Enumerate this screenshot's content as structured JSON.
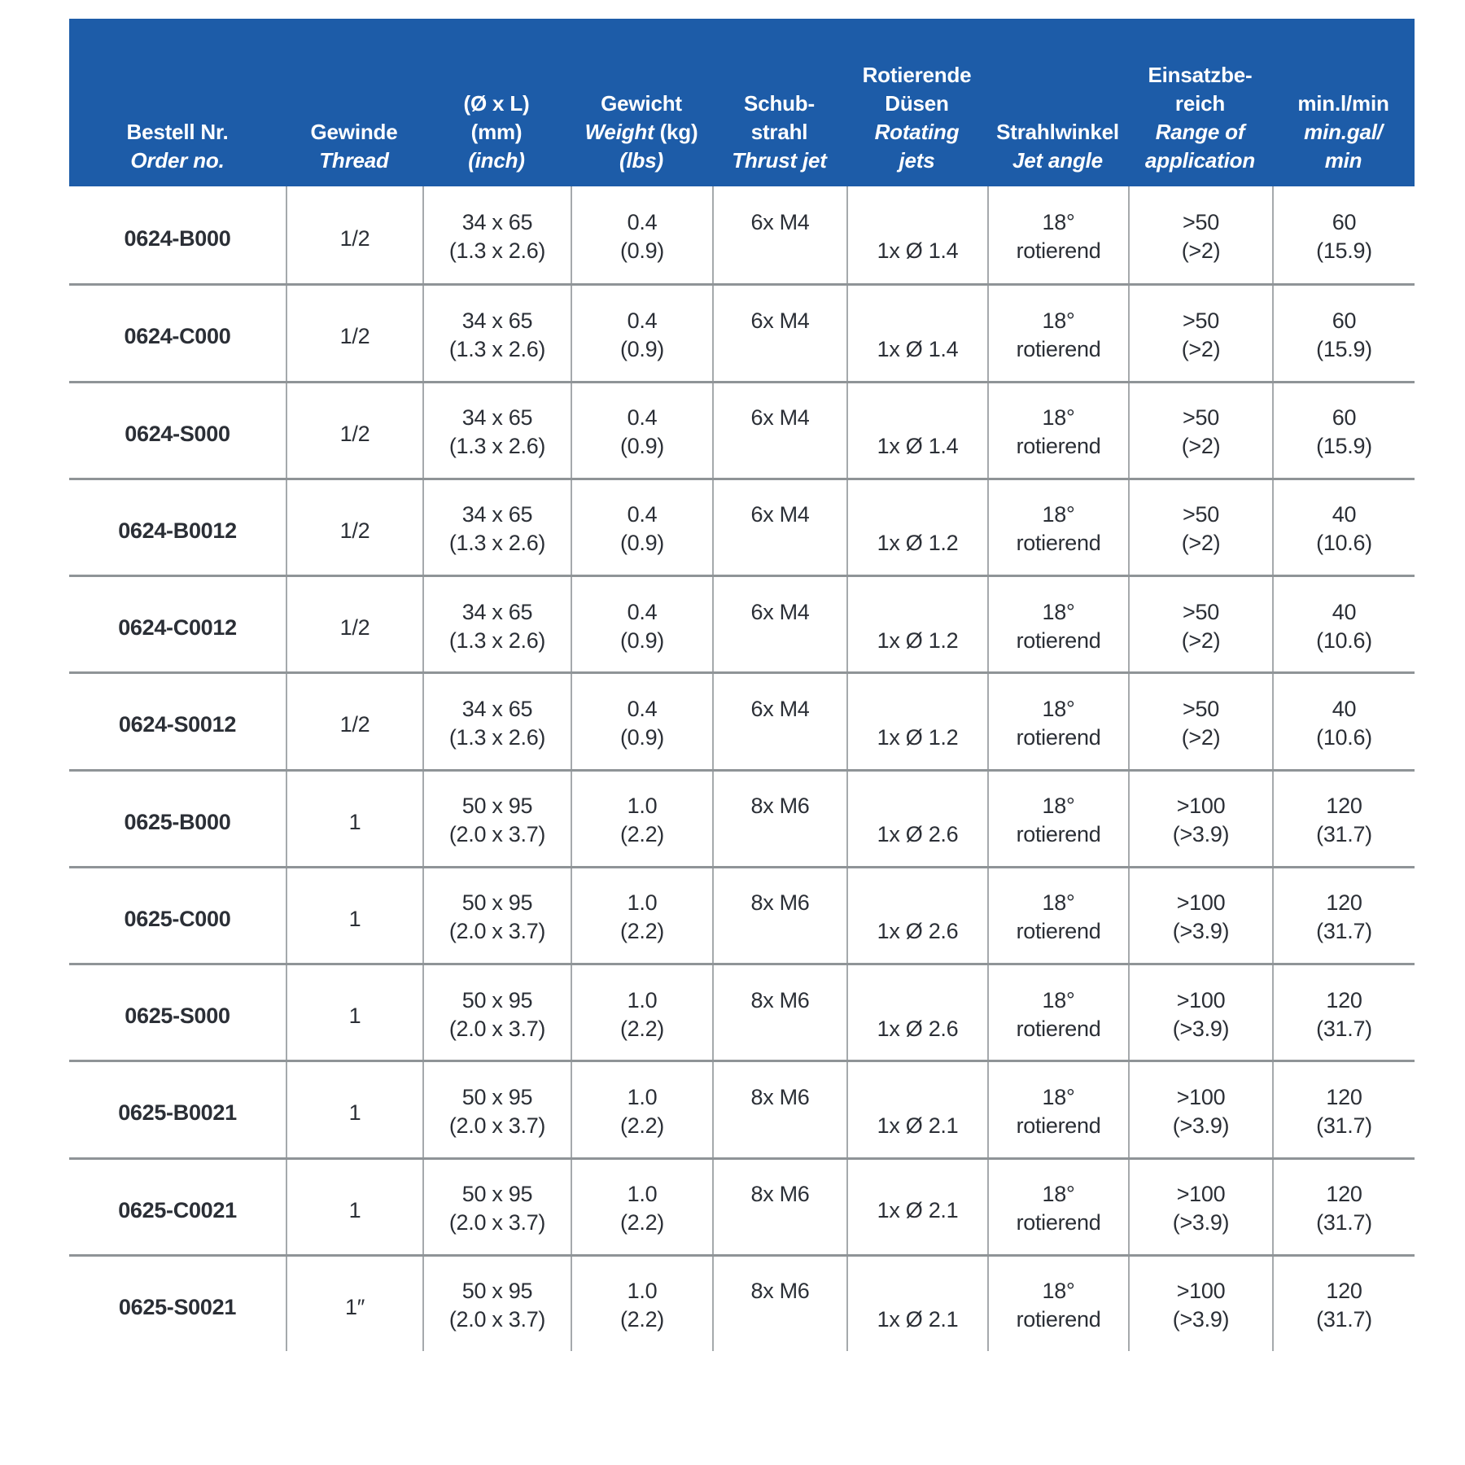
{
  "page": {
    "background": "#ffffff"
  },
  "table": {
    "colors": {
      "header_bg": "#1d5ca8",
      "header_text": "#ffffff",
      "body_text": "#2b2f36",
      "row_separator": "#8f9497",
      "column_separator": "#a5a9ac"
    },
    "header": {
      "columns": [
        {
          "id": "order-no",
          "lines": [
            [
              {
                "t": "Bestell Nr.",
                "i": false
              }
            ],
            [
              {
                "t": "Order no.",
                "i": true
              }
            ]
          ]
        },
        {
          "id": "thread",
          "lines": [
            [
              {
                "t": "Gewinde",
                "i": false
              }
            ],
            [
              {
                "t": "Thread",
                "i": true
              }
            ]
          ]
        },
        {
          "id": "dimensions",
          "lines": [
            [
              {
                "t": "(Ø x L)",
                "i": false
              }
            ],
            [
              {
                "t": "(mm)",
                "i": false
              }
            ],
            [
              {
                "t": "(inch)",
                "i": true
              }
            ]
          ]
        },
        {
          "id": "weight",
          "lines": [
            [
              {
                "t": "Gewicht",
                "i": false
              }
            ],
            [
              {
                "t": "Weight ",
                "i": true
              },
              {
                "t": "(kg)",
                "i": false
              }
            ],
            [
              {
                "t": "(lbs)",
                "i": true
              }
            ]
          ]
        },
        {
          "id": "thrust-jet",
          "lines": [
            [
              {
                "t": "Schub-",
                "i": false
              }
            ],
            [
              {
                "t": "strahl",
                "i": false
              }
            ],
            [
              {
                "t": "Thrust jet",
                "i": true
              }
            ]
          ]
        },
        {
          "id": "rotating-jets",
          "lines": [
            [
              {
                "t": "Rotierende",
                "i": false
              }
            ],
            [
              {
                "t": "Düsen",
                "i": false
              }
            ],
            [
              {
                "t": "Rotating",
                "i": true
              }
            ],
            [
              {
                "t": "jets",
                "i": true
              }
            ]
          ]
        },
        {
          "id": "jet-angle",
          "lines": [
            [
              {
                "t": "Strahlwinkel",
                "i": false
              }
            ],
            [
              {
                "t": "Jet angle",
                "i": true
              }
            ]
          ]
        },
        {
          "id": "range-of-application",
          "lines": [
            [
              {
                "t": "Einsatzbe-",
                "i": false
              }
            ],
            [
              {
                "t": "reich",
                "i": false
              }
            ],
            [
              {
                "t": "Range of",
                "i": true
              }
            ],
            [
              {
                "t": "application",
                "i": true
              }
            ]
          ]
        },
        {
          "id": "flow-rate",
          "lines": [
            [
              {
                "t": "min.l/min",
                "i": false
              }
            ],
            [
              {
                "t": "min.gal/",
                "i": true
              }
            ],
            [
              {
                "t": "min",
                "i": true
              }
            ]
          ]
        }
      ]
    },
    "rows": [
      {
        "order_no": "0624-B000",
        "thread": "1/2",
        "dim_mm": "34 x 65",
        "dim_inch": "(1.3 x 2.6)",
        "weight_kg": "0.4",
        "weight_lbs": "(0.9)",
        "thrust_jet": "6x M4",
        "rotating_jets": "1x Ø 1.4",
        "jets_align": "line2",
        "jet_angle_deg": "18°",
        "jet_angle_mode": "rotierend",
        "range_metric": ">50",
        "range_imperial": "(>2)",
        "flow_l": "60",
        "flow_gal": "(15.9)"
      },
      {
        "order_no": "0624-C000",
        "thread": "1/2",
        "dim_mm": "34 x 65",
        "dim_inch": "(1.3 x 2.6)",
        "weight_kg": "0.4",
        "weight_lbs": "(0.9)",
        "thrust_jet": "6x M4",
        "rotating_jets": "1x Ø 1.4",
        "jets_align": "line2",
        "jet_angle_deg": "18°",
        "jet_angle_mode": "rotierend",
        "range_metric": ">50",
        "range_imperial": "(>2)",
        "flow_l": "60",
        "flow_gal": "(15.9)"
      },
      {
        "order_no": "0624-S000",
        "thread": "1/2",
        "dim_mm": "34 x 65",
        "dim_inch": "(1.3 x 2.6)",
        "weight_kg": "0.4",
        "weight_lbs": "(0.9)",
        "thrust_jet": "6x M4",
        "rotating_jets": "1x Ø 1.4",
        "jets_align": "line2",
        "jet_angle_deg": "18°",
        "jet_angle_mode": "rotierend",
        "range_metric": ">50",
        "range_imperial": "(>2)",
        "flow_l": "60",
        "flow_gal": "(15.9)"
      },
      {
        "order_no": "0624-B0012",
        "thread": "1/2",
        "dim_mm": "34 x 65",
        "dim_inch": "(1.3 x 2.6)",
        "weight_kg": "0.4",
        "weight_lbs": "(0.9)",
        "thrust_jet": "6x M4",
        "rotating_jets": "1x Ø 1.2",
        "jets_align": "line2",
        "jet_angle_deg": "18°",
        "jet_angle_mode": "rotierend",
        "range_metric": ">50",
        "range_imperial": "(>2)",
        "flow_l": "40",
        "flow_gal": "(10.6)"
      },
      {
        "order_no": "0624-C0012",
        "thread": "1/2",
        "dim_mm": "34 x 65",
        "dim_inch": "(1.3 x 2.6)",
        "weight_kg": "0.4",
        "weight_lbs": "(0.9)",
        "thrust_jet": "6x M4",
        "rotating_jets": "1x Ø 1.2",
        "jets_align": "line2",
        "jet_angle_deg": "18°",
        "jet_angle_mode": "rotierend",
        "range_metric": ">50",
        "range_imperial": "(>2)",
        "flow_l": "40",
        "flow_gal": "(10.6)"
      },
      {
        "order_no": "0624-S0012",
        "thread": "1/2",
        "dim_mm": "34 x 65",
        "dim_inch": "(1.3 x 2.6)",
        "weight_kg": "0.4",
        "weight_lbs": "(0.9)",
        "thrust_jet": "6x M4",
        "rotating_jets": "1x Ø 1.2",
        "jets_align": "line2",
        "jet_angle_deg": "18°",
        "jet_angle_mode": "rotierend",
        "range_metric": ">50",
        "range_imperial": "(>2)",
        "flow_l": "40",
        "flow_gal": "(10.6)"
      },
      {
        "order_no": "0625-B000",
        "thread": "1",
        "dim_mm": "50 x 95",
        "dim_inch": "(2.0 x 3.7)",
        "weight_kg": "1.0",
        "weight_lbs": "(2.2)",
        "thrust_jet": "8x M6",
        "rotating_jets": "1x Ø 2.6",
        "jets_align": "line2",
        "jet_angle_deg": "18°",
        "jet_angle_mode": "rotierend",
        "range_metric": ">100",
        "range_imperial": "(>3.9)",
        "flow_l": "120",
        "flow_gal": "(31.7)"
      },
      {
        "order_no": "0625-C000",
        "thread": "1",
        "dim_mm": "50 x 95",
        "dim_inch": "(2.0 x 3.7)",
        "weight_kg": "1.0",
        "weight_lbs": "(2.2)",
        "thrust_jet": "8x M6",
        "rotating_jets": "1x Ø 2.6",
        "jets_align": "line2",
        "jet_angle_deg": "18°",
        "jet_angle_mode": "rotierend",
        "range_metric": ">100",
        "range_imperial": "(>3.9)",
        "flow_l": "120",
        "flow_gal": "(31.7)"
      },
      {
        "order_no": "0625-S000",
        "thread": "1",
        "dim_mm": "50 x 95",
        "dim_inch": "(2.0 x 3.7)",
        "weight_kg": "1.0",
        "weight_lbs": "(2.2)",
        "thrust_jet": "8x M6",
        "rotating_jets": "1x Ø 2.6",
        "jets_align": "line2",
        "jet_angle_deg": "18°",
        "jet_angle_mode": "rotierend",
        "range_metric": ">100",
        "range_imperial": "(>3.9)",
        "flow_l": "120",
        "flow_gal": "(31.7)"
      },
      {
        "order_no": "0625-B0021",
        "thread": "1",
        "dim_mm": "50 x 95",
        "dim_inch": "(2.0 x 3.7)",
        "weight_kg": "1.0",
        "weight_lbs": "(2.2)",
        "thrust_jet": "8x M6",
        "rotating_jets": "1x Ø 2.1",
        "jets_align": "line2",
        "jet_angle_deg": "18°",
        "jet_angle_mode": "rotierend",
        "range_metric": ">100",
        "range_imperial": "(>3.9)",
        "flow_l": "120",
        "flow_gal": "(31.7)"
      },
      {
        "order_no": "0625-C0021",
        "thread": "1",
        "dim_mm": "50 x 95",
        "dim_inch": "(2.0 x 3.7)",
        "weight_kg": "1.0",
        "weight_lbs": "(2.2)",
        "thrust_jet": "8x M6",
        "rotating_jets": "1x Ø 2.1",
        "jets_align": "center",
        "jet_angle_deg": "18°",
        "jet_angle_mode": "rotierend",
        "range_metric": ">100",
        "range_imperial": "(>3.9)",
        "flow_l": "120",
        "flow_gal": "(31.7)"
      },
      {
        "order_no": "0625-S0021",
        "thread": "1″",
        "dim_mm": "50 x 95",
        "dim_inch": "(2.0 x 3.7)",
        "weight_kg": "1.0",
        "weight_lbs": "(2.2)",
        "thrust_jet": "8x M6",
        "rotating_jets": "1x Ø 2.1",
        "jets_align": "line2",
        "jet_angle_deg": "18°",
        "jet_angle_mode": "rotierend",
        "range_metric": ">100",
        "range_imperial": "(>3.9)",
        "flow_l": "120",
        "flow_gal": "(31.7)"
      }
    ]
  }
}
